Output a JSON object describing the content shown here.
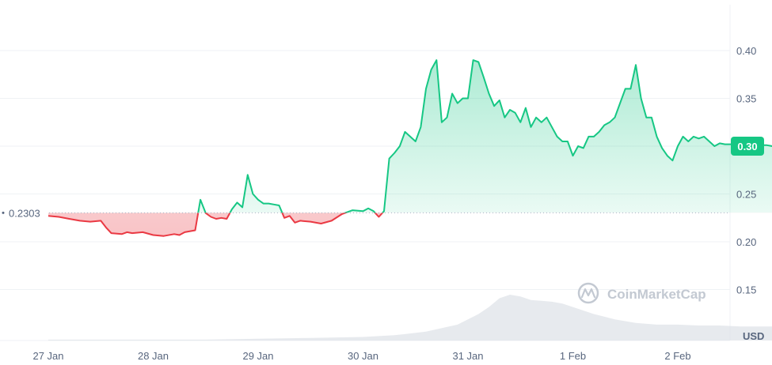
{
  "chart_data": {
    "type": "line",
    "title": "",
    "xlabel": "",
    "ylabel": "USD",
    "unit": "USD",
    "xlim": [
      0,
      6.9
    ],
    "ylim": [
      0.1,
      0.45
    ],
    "grid": true,
    "x_ticks": [
      {
        "value": 0,
        "label": "27 Jan"
      },
      {
        "value": 1,
        "label": "28 Jan"
      },
      {
        "value": 2,
        "label": "29 Jan"
      },
      {
        "value": 3,
        "label": "30 Jan"
      },
      {
        "value": 4,
        "label": "31 Jan"
      },
      {
        "value": 5,
        "label": "1 Feb"
      },
      {
        "value": 6,
        "label": "2 Feb"
      }
    ],
    "y_ticks": [
      "0.40",
      "0.35",
      "0.30",
      "0.25",
      "0.20",
      "0.15"
    ],
    "y_tick_values": [
      0.4,
      0.35,
      0.3,
      0.25,
      0.2,
      0.15
    ],
    "baseline": {
      "value": 0.2303,
      "label": "0.2303"
    },
    "current_price": {
      "value": 0.3,
      "label": "0.30"
    },
    "colors": {
      "up": "#16c784",
      "down": "#ea3943",
      "grid": "#eff2f5",
      "label_bg": "#16c784"
    },
    "watermark": "CoinMarketCap",
    "series": [
      {
        "x": [
          0.0,
          0.1,
          0.2,
          0.3,
          0.4,
          0.5,
          0.55,
          0.6,
          0.7,
          0.75,
          0.8,
          0.9,
          1.0,
          1.1,
          1.2,
          1.25,
          1.3,
          1.4,
          1.45,
          1.5,
          1.55,
          1.6,
          1.65,
          1.7,
          1.75,
          1.8,
          1.85,
          1.9,
          1.95,
          2.0,
          2.05,
          2.1,
          2.15,
          2.2,
          2.25,
          2.3,
          2.35,
          2.4,
          2.5,
          2.6,
          2.7,
          2.8,
          2.9,
          3.0,
          3.05,
          3.1,
          3.15,
          3.2,
          3.25,
          3.3,
          3.35,
          3.4,
          3.5,
          3.55,
          3.6,
          3.65,
          3.7,
          3.75,
          3.8,
          3.85,
          3.9,
          3.95,
          4.0,
          4.05,
          4.1,
          4.15,
          4.2,
          4.25,
          4.3,
          4.35,
          4.4,
          4.45,
          4.5,
          4.55,
          4.6,
          4.65,
          4.7,
          4.75,
          4.8,
          4.85,
          4.9,
          4.95,
          5.0,
          5.05,
          5.1,
          5.15,
          5.2,
          5.25,
          5.3,
          5.35,
          5.4,
          5.45,
          5.5,
          5.55,
          5.6,
          5.65,
          5.7,
          5.75,
          5.8,
          5.85,
          5.9,
          5.95,
          6.0,
          6.05,
          6.1,
          6.15,
          6.2,
          6.25,
          6.3,
          6.35,
          6.4,
          6.45,
          6.5,
          6.55,
          6.6,
          6.65,
          6.7,
          6.75,
          6.8,
          6.85,
          6.9
        ],
        "values": [
          0.227,
          0.226,
          0.224,
          0.222,
          0.221,
          0.222,
          0.215,
          0.209,
          0.208,
          0.21,
          0.209,
          0.21,
          0.207,
          0.206,
          0.208,
          0.207,
          0.21,
          0.212,
          0.244,
          0.23,
          0.226,
          0.224,
          0.225,
          0.224,
          0.234,
          0.241,
          0.236,
          0.27,
          0.25,
          0.244,
          0.24,
          0.24,
          0.239,
          0.238,
          0.225,
          0.227,
          0.22,
          0.222,
          0.221,
          0.219,
          0.222,
          0.229,
          0.233,
          0.232,
          0.235,
          0.232,
          0.226,
          0.232,
          0.287,
          0.293,
          0.3,
          0.315,
          0.305,
          0.32,
          0.36,
          0.38,
          0.39,
          0.325,
          0.33,
          0.355,
          0.345,
          0.35,
          0.35,
          0.39,
          0.388,
          0.372,
          0.355,
          0.342,
          0.348,
          0.33,
          0.338,
          0.335,
          0.325,
          0.34,
          0.32,
          0.33,
          0.325,
          0.33,
          0.32,
          0.31,
          0.305,
          0.305,
          0.29,
          0.3,
          0.298,
          0.31,
          0.31,
          0.315,
          0.322,
          0.325,
          0.33,
          0.345,
          0.36,
          0.36,
          0.385,
          0.35,
          0.33,
          0.33,
          0.31,
          0.298,
          0.29,
          0.285,
          0.3,
          0.31,
          0.305,
          0.31,
          0.308,
          0.31,
          0.305,
          0.3,
          0.303,
          0.302,
          0.302,
          0.302,
          0.302,
          0.302,
          0.302,
          0.302,
          0.301,
          0.301,
          0.3
        ]
      }
    ],
    "volume": {
      "x": [
        0.0,
        0.5,
        1.0,
        1.5,
        2.0,
        2.5,
        3.0,
        3.3,
        3.6,
        3.9,
        4.0,
        4.1,
        4.2,
        4.3,
        4.4,
        4.5,
        4.6,
        4.7,
        4.8,
        4.9,
        5.0,
        5.2,
        5.4,
        5.6,
        5.8,
        6.0,
        6.2,
        6.4,
        6.6,
        6.9
      ],
      "values": [
        1,
        1,
        1,
        1,
        2,
        3,
        4,
        6,
        10,
        18,
        24,
        30,
        38,
        48,
        52,
        50,
        46,
        45,
        44,
        42,
        38,
        30,
        24,
        20,
        18,
        18,
        17,
        17,
        16,
        16
      ]
    }
  }
}
